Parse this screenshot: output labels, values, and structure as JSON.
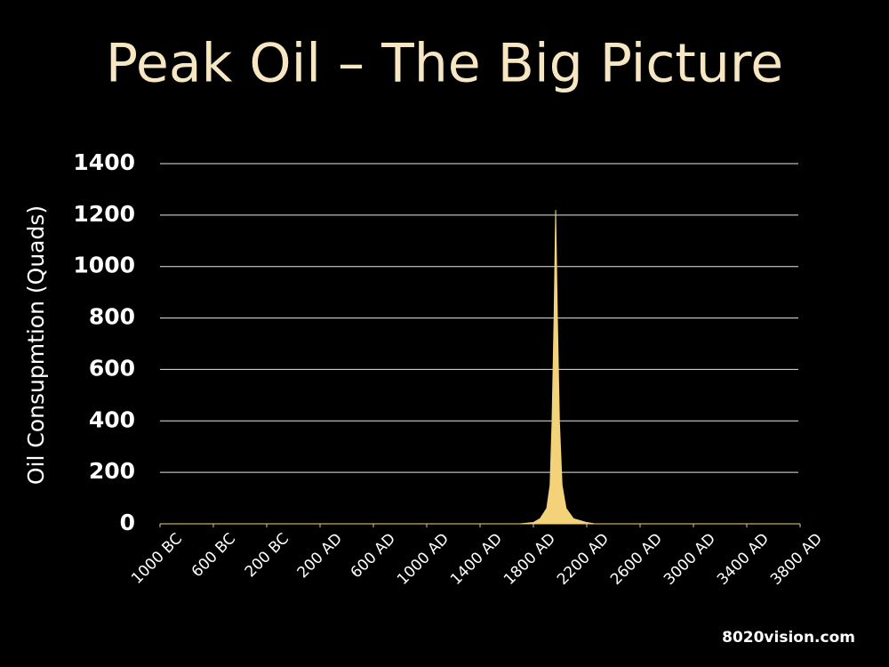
{
  "chart_data": {
    "type": "area",
    "title": "Peak Oil – The Big Picture",
    "y_label": "Oil Consupmtion (Quads)",
    "source": "8020vision.com",
    "color": "#f3d27a",
    "grid": true,
    "x": [
      -1000,
      1700,
      1800,
      1850,
      1900,
      1925,
      1940,
      1955,
      1967,
      1980,
      1995,
      2015,
      2045,
      2100,
      2200,
      2260,
      3800
    ],
    "values": [
      0,
      0,
      5,
      20,
      60,
      150,
      400,
      800,
      1220,
      800,
      400,
      150,
      60,
      20,
      5,
      0,
      0
    ],
    "xlim": [
      -1000,
      3800
    ],
    "xticks": [
      {
        "value": -1000,
        "label": "1000 BC"
      },
      {
        "value": -600,
        "label": "600 BC"
      },
      {
        "value": -200,
        "label": "200 BC"
      },
      {
        "value": 200,
        "label": "200 AD"
      },
      {
        "value": 600,
        "label": "600 AD"
      },
      {
        "value": 1000,
        "label": "1000 AD"
      },
      {
        "value": 1400,
        "label": "1400 AD"
      },
      {
        "value": 1800,
        "label": "1800 AD"
      },
      {
        "value": 2200,
        "label": "2200 AD"
      },
      {
        "value": 2600,
        "label": "2600 AD"
      },
      {
        "value": 3000,
        "label": "3000 AD"
      },
      {
        "value": 3400,
        "label": "3400 AD"
      },
      {
        "value": 3800,
        "label": "3800 AD"
      }
    ],
    "ylim": [
      0,
      1400
    ],
    "yticks": [
      0,
      200,
      400,
      600,
      800,
      1000,
      1200,
      1400
    ]
  }
}
